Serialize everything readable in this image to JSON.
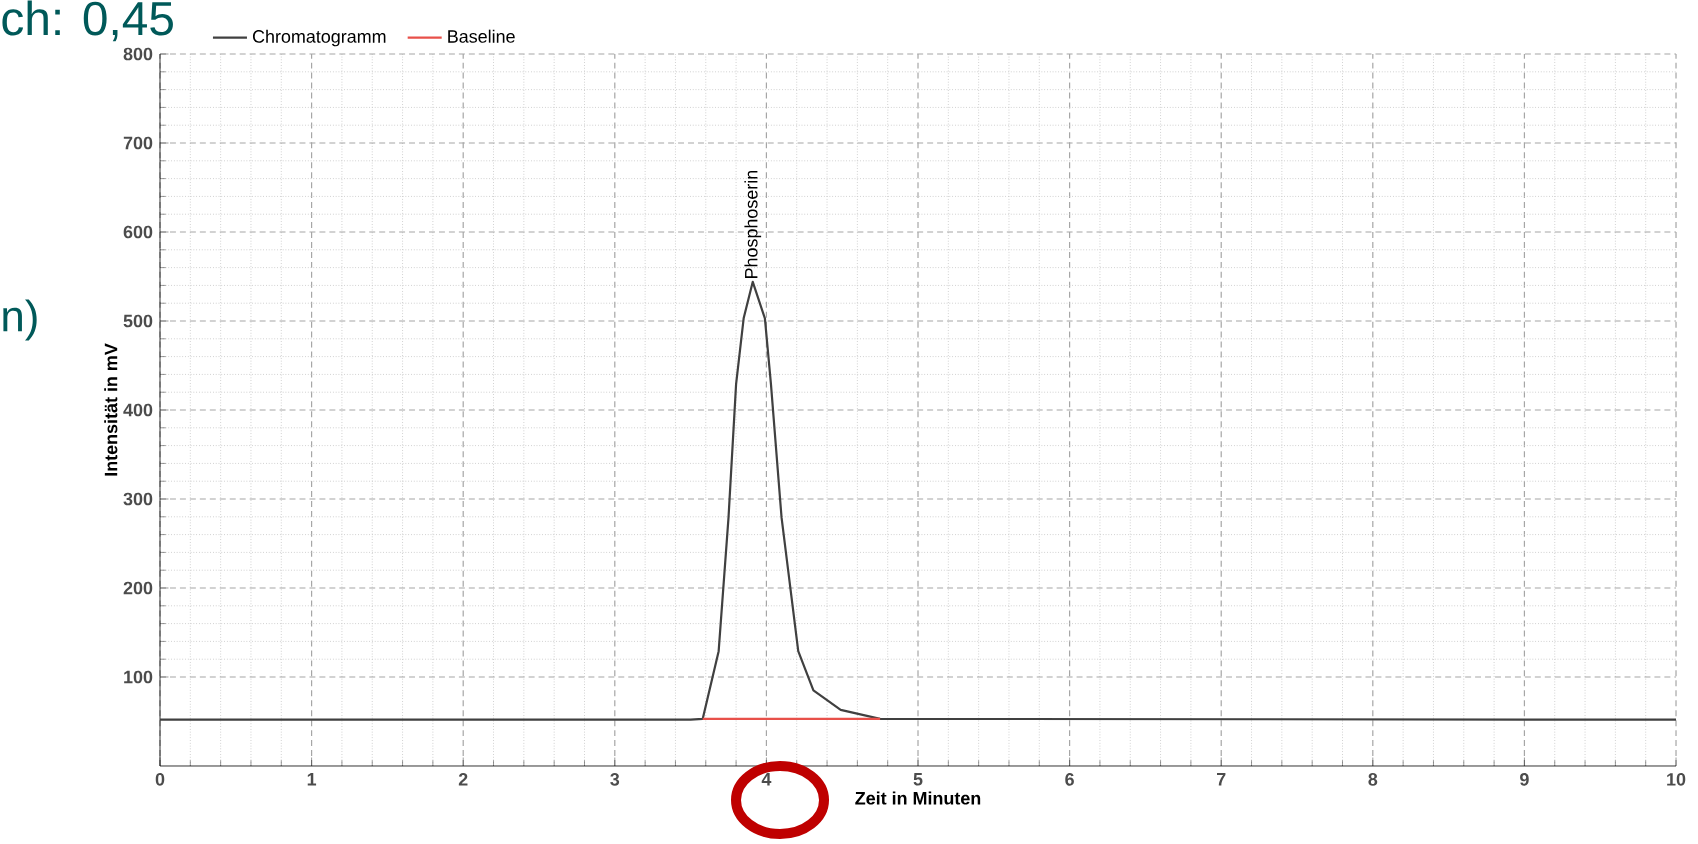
{
  "chart_data": {
    "type": "line",
    "xlabel": "Zeit in Minuten",
    "ylabel": "Intensität in mV",
    "series": [
      {
        "name": "Chromatogramm",
        "color": "#404040",
        "x": [
          0,
          3.5,
          3.58,
          3.685,
          3.75,
          3.8,
          3.85,
          3.91,
          3.99,
          4.03,
          4.1,
          4.21,
          4.31,
          4.49,
          4.75,
          10
        ],
        "values": [
          52,
          52,
          53,
          129,
          279,
          429,
          503,
          544,
          503,
          429,
          279,
          129,
          85,
          63,
          53,
          52
        ]
      },
      {
        "name": "Baseline",
        "color": "#e8504a",
        "x": [
          3.58,
          4.75
        ],
        "values": [
          53,
          53
        ]
      }
    ],
    "xlim": [
      0,
      10
    ],
    "ylim": [
      0,
      800
    ],
    "xticks": [
      0,
      1,
      2,
      3,
      4,
      5,
      6,
      7,
      8,
      9,
      10
    ],
    "yticks": [
      100,
      200,
      300,
      400,
      500,
      600,
      700,
      800
    ],
    "grid": true,
    "legend": "top",
    "marker": "none",
    "line_style": "solid",
    "annotations": [
      {
        "text": "Phosphoserin",
        "x": 3.91,
        "y": 544
      },
      "ch: 0,45",
      "n)"
    ]
  }
}
